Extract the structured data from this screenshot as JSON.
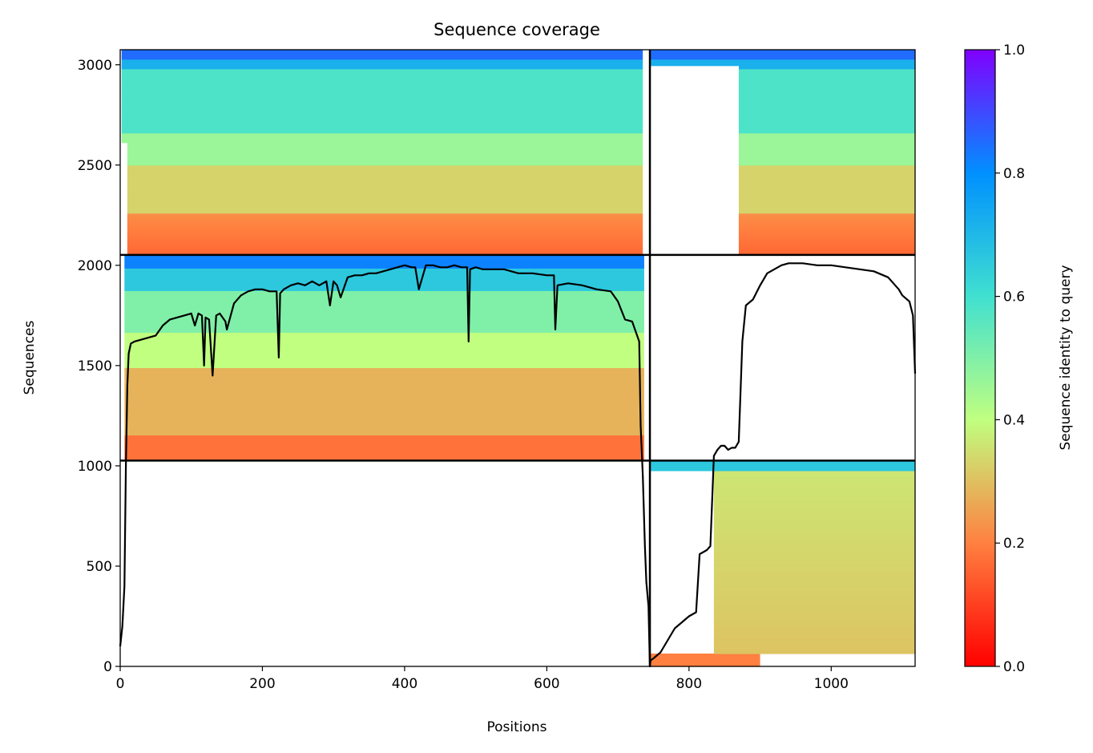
{
  "chart_data": {
    "type": "heatmap",
    "title": "Sequence coverage",
    "xlabel": "Positions",
    "ylabel": "Sequences",
    "xlim": [
      0,
      1118
    ],
    "ylim": [
      0,
      3075
    ],
    "x_ticks": [
      0,
      200,
      400,
      600,
      800,
      1000
    ],
    "y_ticks": [
      0,
      500,
      1000,
      1500,
      2000,
      2500,
      3000
    ],
    "grid": false,
    "chain_boundary_x": 745,
    "block_boundaries_y": [
      1026,
      2052
    ],
    "colorbar": {
      "label": "Sequence identity to query",
      "colormap": "rainbow_r",
      "range": [
        0,
        1
      ],
      "ticks": [
        0.0,
        0.2,
        0.4,
        0.6,
        0.8,
        1.0
      ],
      "colors": [
        "#ff0000",
        "#ff8040",
        "#c0ff80",
        "#40e0d0",
        "#0090ff",
        "#8000ff"
      ]
    },
    "coverage_series": {
      "name": "",
      "color": "#000000",
      "x": [
        0,
        3,
        6,
        8,
        10,
        12,
        15,
        20,
        30,
        40,
        50,
        60,
        70,
        80,
        90,
        100,
        105,
        110,
        115,
        118,
        120,
        125,
        130,
        135,
        140,
        148,
        150,
        160,
        170,
        180,
        190,
        200,
        210,
        220,
        223,
        225,
        230,
        240,
        250,
        260,
        270,
        280,
        290,
        295,
        300,
        305,
        310,
        320,
        330,
        340,
        350,
        360,
        370,
        380,
        390,
        400,
        410,
        415,
        420,
        430,
        440,
        450,
        460,
        470,
        480,
        488,
        490,
        492,
        500,
        510,
        520,
        540,
        560,
        580,
        600,
        610,
        612,
        615,
        630,
        650,
        670,
        690,
        700,
        710,
        720,
        730,
        732,
        735,
        738,
        740,
        743,
        745,
        746,
        750,
        760,
        770,
        780,
        790,
        800,
        810,
        815,
        820,
        825,
        830,
        835,
        840,
        845,
        850,
        855,
        860,
        865,
        870,
        875,
        880,
        890,
        900,
        910,
        920,
        930,
        940,
        960,
        980,
        1000,
        1020,
        1040,
        1060,
        1080,
        1095,
        1100,
        1110,
        1115,
        1118
      ],
      "y": [
        100,
        200,
        400,
        1000,
        1400,
        1560,
        1610,
        1620,
        1630,
        1640,
        1650,
        1700,
        1730,
        1740,
        1750,
        1760,
        1700,
        1760,
        1750,
        1500,
        1740,
        1730,
        1450,
        1750,
        1760,
        1720,
        1680,
        1810,
        1850,
        1870,
        1880,
        1880,
        1870,
        1870,
        1540,
        1860,
        1880,
        1900,
        1910,
        1900,
        1920,
        1900,
        1920,
        1800,
        1920,
        1900,
        1840,
        1940,
        1950,
        1950,
        1960,
        1960,
        1970,
        1980,
        1990,
        2000,
        1990,
        1990,
        1880,
        2000,
        2000,
        1990,
        1990,
        2000,
        1990,
        1990,
        1620,
        1980,
        1990,
        1980,
        1980,
        1980,
        1960,
        1960,
        1950,
        1950,
        1680,
        1900,
        1910,
        1900,
        1880,
        1870,
        1820,
        1730,
        1720,
        1620,
        1200,
        950,
        600,
        420,
        300,
        0,
        30,
        40,
        70,
        130,
        190,
        220,
        250,
        270,
        560,
        570,
        580,
        600,
        1050,
        1080,
        1100,
        1100,
        1080,
        1090,
        1090,
        1120,
        1620,
        1800,
        1830,
        1900,
        1960,
        1980,
        2000,
        2010,
        2010,
        2000,
        2000,
        1990,
        1980,
        1970,
        1940,
        1880,
        1850,
        1820,
        1750,
        1460
      ]
    }
  }
}
